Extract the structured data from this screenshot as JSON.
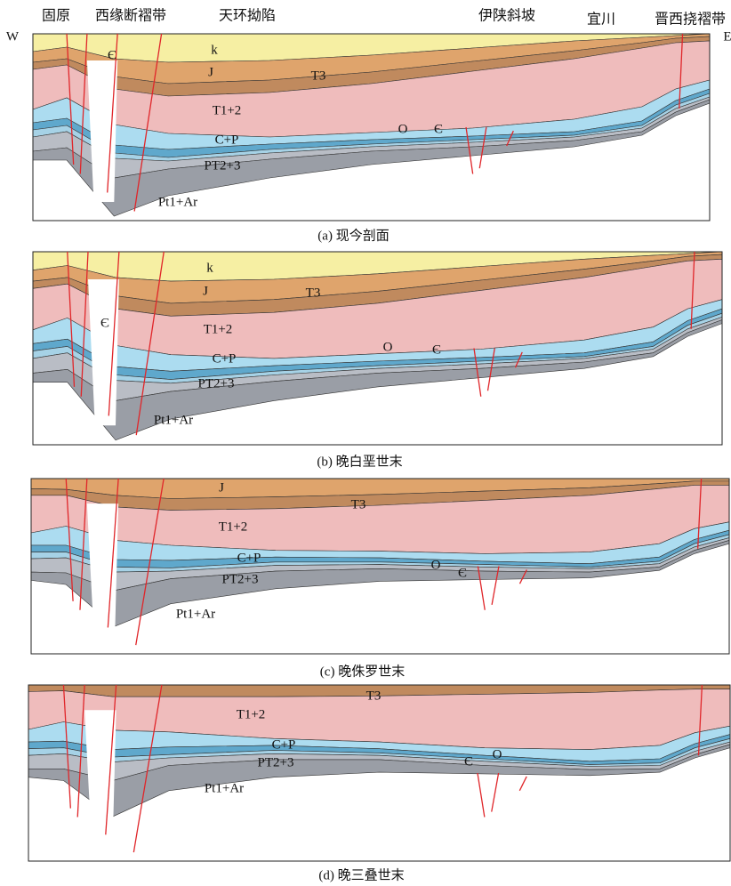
{
  "header": {
    "west": "W",
    "east": "E",
    "regions": [
      "固原",
      "西缘断褶带",
      "天环拗陷",
      "伊陕斜坡",
      "宜川",
      "晋西挠褶带"
    ]
  },
  "panels": [
    {
      "caption": "(a) 现今剖面",
      "labels": [
        "k",
        "J",
        "T3",
        "T1+2",
        "C+P",
        "PT2+3",
        "Pt1+Ar",
        "O",
        "Є",
        "Є"
      ]
    },
    {
      "caption": "(b) 晚白垩世末",
      "labels": [
        "k",
        "J",
        "T3",
        "T1+2",
        "C+P",
        "PT2+3",
        "Pt1+Ar",
        "O",
        "Є",
        "Є"
      ]
    },
    {
      "caption": "(c) 晚侏罗世末",
      "labels": [
        "J",
        "T3",
        "T1+2",
        "C+P",
        "PT2+3",
        "Pt1+Ar",
        "O",
        "Є"
      ]
    },
    {
      "caption": "(d) 晚三叠世末",
      "labels": [
        "T3",
        "T1+2",
        "C+P",
        "PT2+3",
        "Pt1+Ar",
        "Є",
        "O"
      ]
    }
  ]
}
